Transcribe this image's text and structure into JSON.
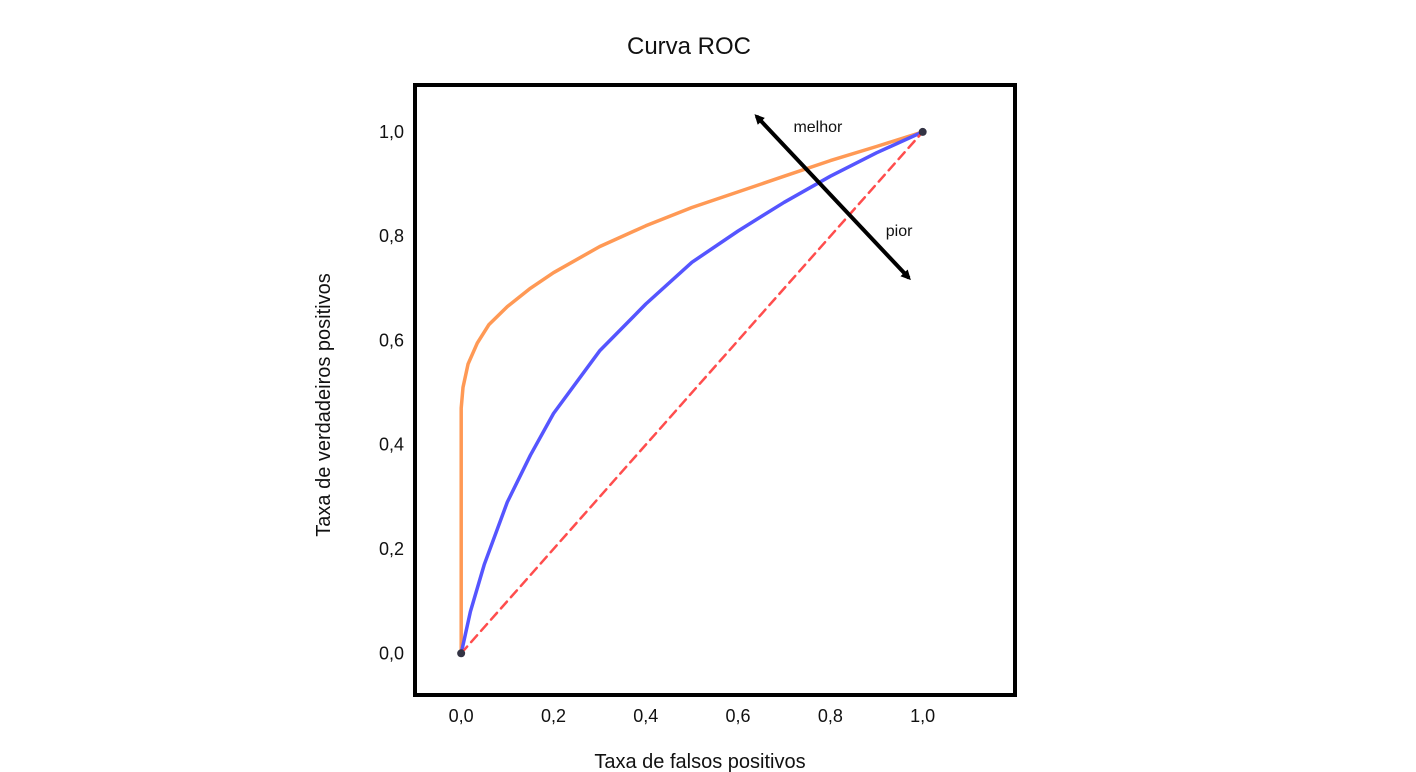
{
  "chart_data": {
    "type": "line",
    "title": "Curva ROC",
    "xlabel": "Taxa de falsos positivos",
    "ylabel": "Taxa de verdadeiros positivos",
    "xlim": [
      -0.1,
      1.2
    ],
    "ylim": [
      -0.08,
      1.09
    ],
    "grid": false,
    "x_ticks": [
      {
        "value": 0.0,
        "label": "0,0"
      },
      {
        "value": 0.2,
        "label": "0,2"
      },
      {
        "value": 0.4,
        "label": "0,4"
      },
      {
        "value": 0.6,
        "label": "0,6"
      },
      {
        "value": 0.8,
        "label": "0,8"
      },
      {
        "value": 1.0,
        "label": "1,0"
      }
    ],
    "y_ticks": [
      {
        "value": 0.0,
        "label": "0,0"
      },
      {
        "value": 0.2,
        "label": "0,2"
      },
      {
        "value": 0.4,
        "label": "0,4"
      },
      {
        "value": 0.6,
        "label": "0,6"
      },
      {
        "value": 0.8,
        "label": "0,8"
      },
      {
        "value": 1.0,
        "label": "1,0"
      }
    ],
    "series": [
      {
        "color": "#ff9955",
        "style": "solid",
        "x": [
          0.0,
          0.0,
          0.0,
          0.004,
          0.015,
          0.035,
          0.06,
          0.1,
          0.15,
          0.2,
          0.3,
          0.4,
          0.5,
          0.6,
          0.7,
          0.8,
          0.9,
          1.0
        ],
        "y": [
          0.0,
          0.2,
          0.47,
          0.51,
          0.555,
          0.595,
          0.63,
          0.665,
          0.7,
          0.73,
          0.78,
          0.82,
          0.855,
          0.885,
          0.915,
          0.945,
          0.972,
          1.0
        ]
      },
      {
        "color": "#5555ff",
        "style": "solid",
        "x": [
          0.0,
          0.02,
          0.05,
          0.1,
          0.15,
          0.2,
          0.3,
          0.4,
          0.5,
          0.6,
          0.7,
          0.8,
          0.9,
          1.0
        ],
        "y": [
          0.0,
          0.08,
          0.17,
          0.29,
          0.38,
          0.46,
          0.58,
          0.67,
          0.75,
          0.81,
          0.865,
          0.915,
          0.96,
          1.0
        ]
      },
      {
        "color": "#ff4d4d",
        "style": "dashed",
        "x": [
          0.0,
          1.0
        ],
        "y": [
          0.0,
          1.0
        ]
      }
    ],
    "endpoints": [
      {
        "x": 0.0,
        "y": 0.0
      },
      {
        "x": 1.0,
        "y": 1.0
      }
    ],
    "annotations": {
      "arrow": {
        "from": [
          0.64,
          1.03
        ],
        "to": [
          0.97,
          0.72
        ]
      },
      "labels": [
        {
          "text": "melhor",
          "x": 0.72,
          "y": 1.0
        },
        {
          "text": "pior",
          "x": 0.92,
          "y": 0.8
        }
      ]
    }
  }
}
